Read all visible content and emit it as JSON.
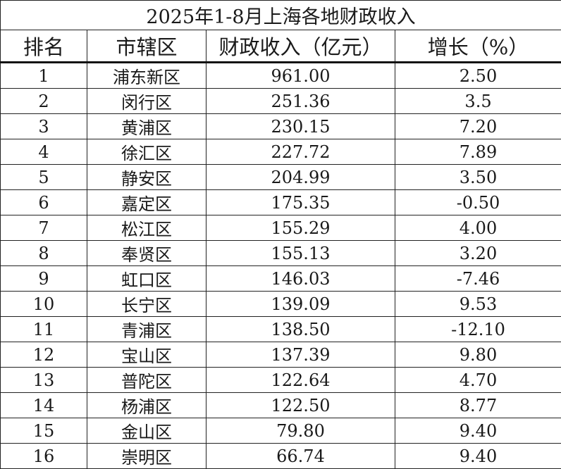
{
  "title": "2025年1-8月上海各地财政收入",
  "headers": [
    "排名",
    "市辖区",
    "财政收入（亿元）",
    "增长（%）"
  ],
  "rows": [
    {
      "rank": "1",
      "district": "浦东新区",
      "revenue": "961.00",
      "growth": "2.50"
    },
    {
      "rank": "2",
      "district": "闵行区",
      "revenue": "251.36",
      "growth": "3.5"
    },
    {
      "rank": "3",
      "district": "黄浦区",
      "revenue": "230.15",
      "growth": "7.20"
    },
    {
      "rank": "4",
      "district": "徐汇区",
      "revenue": "227.72",
      "growth": "7.89"
    },
    {
      "rank": "5",
      "district": "静安区",
      "revenue": "204.99",
      "growth": "3.50"
    },
    {
      "rank": "6",
      "district": "嘉定区",
      "revenue": "175.35",
      "growth": "-0.50"
    },
    {
      "rank": "7",
      "district": "松江区",
      "revenue": "155.29",
      "growth": "4.00"
    },
    {
      "rank": "8",
      "district": "奉贤区",
      "revenue": "155.13",
      "growth": "3.20"
    },
    {
      "rank": "9",
      "district": "虹口区",
      "revenue": "146.03",
      "growth": "-7.46"
    },
    {
      "rank": "10",
      "district": "长宁区",
      "revenue": "139.09",
      "growth": "9.53"
    },
    {
      "rank": "11",
      "district": "青浦区",
      "revenue": "138.50",
      "growth": "-12.10"
    },
    {
      "rank": "12",
      "district": "宝山区",
      "revenue": "137.39",
      "growth": "9.80"
    },
    {
      "rank": "13",
      "district": "普陀区",
      "revenue": "122.64",
      "growth": "4.70"
    },
    {
      "rank": "14",
      "district": "杨浦区",
      "revenue": "122.50",
      "growth": "8.77"
    },
    {
      "rank": "15",
      "district": "金山区",
      "revenue": "79.80",
      "growth": "9.40"
    },
    {
      "rank": "16",
      "district": "崇明区",
      "revenue": "66.74",
      "growth": "9.40"
    }
  ]
}
